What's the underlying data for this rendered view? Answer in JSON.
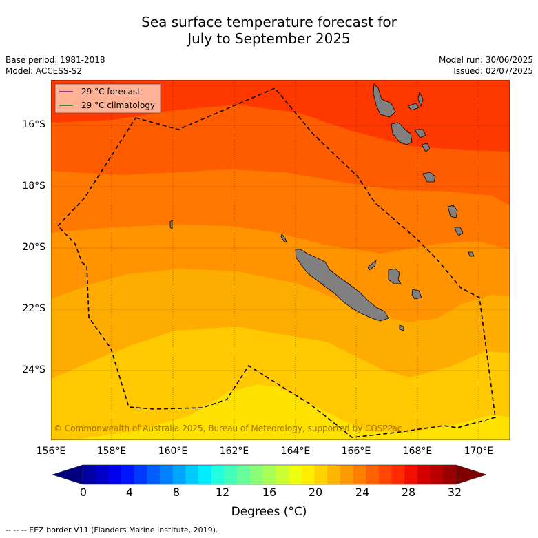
{
  "title_line1": "Sea surface temperature forecast for",
  "title_line2": "July to September 2025",
  "base_period": "Base period: 1981-2018",
  "model": "Model: ACCESS-S2",
  "model_run": "Model run: 30/06/2025",
  "issued": "Issued: 02/07/2025",
  "legend": {
    "forecast": "29 °C  forecast",
    "climatology": "29 °C  climatology",
    "forecast_color": "#800080",
    "climatology_color": "#008000"
  },
  "copyright": "© Commonwealth of Australia 2025, Bureau of Meteorology, supported by COSPPac",
  "lat_ticks": [
    "16°S",
    "18°S",
    "20°S",
    "22°S",
    "24°S"
  ],
  "lon_ticks": [
    "156°E",
    "158°E",
    "160°E",
    "162°E",
    "164°E",
    "166°E",
    "168°E",
    "170°E"
  ],
  "colorbar": {
    "ticks": [
      "0",
      "4",
      "8",
      "12",
      "16",
      "20",
      "24",
      "28",
      "32"
    ],
    "label": "Degrees (°C)",
    "colors": [
      "#00007f",
      "#0000a3",
      "#0000c8",
      "#0000ec",
      "#0016ff",
      "#003aff",
      "#005eff",
      "#0082ff",
      "#00a6ff",
      "#00caff",
      "#00eeff",
      "#22ffdd",
      "#44ffbb",
      "#66ff99",
      "#88ff77",
      "#aaff55",
      "#ccff33",
      "#eeff11",
      "#ffee00",
      "#ffd200",
      "#ffb600",
      "#ff9a00",
      "#ff7e00",
      "#ff6200",
      "#ff4600",
      "#ff2a00",
      "#f20e00",
      "#d50000",
      "#b80000",
      "#9b0000",
      "#800000"
    ]
  },
  "footer": "--  --  -- EEZ border V11 (Flanders Marine Institute, 2019)."
}
